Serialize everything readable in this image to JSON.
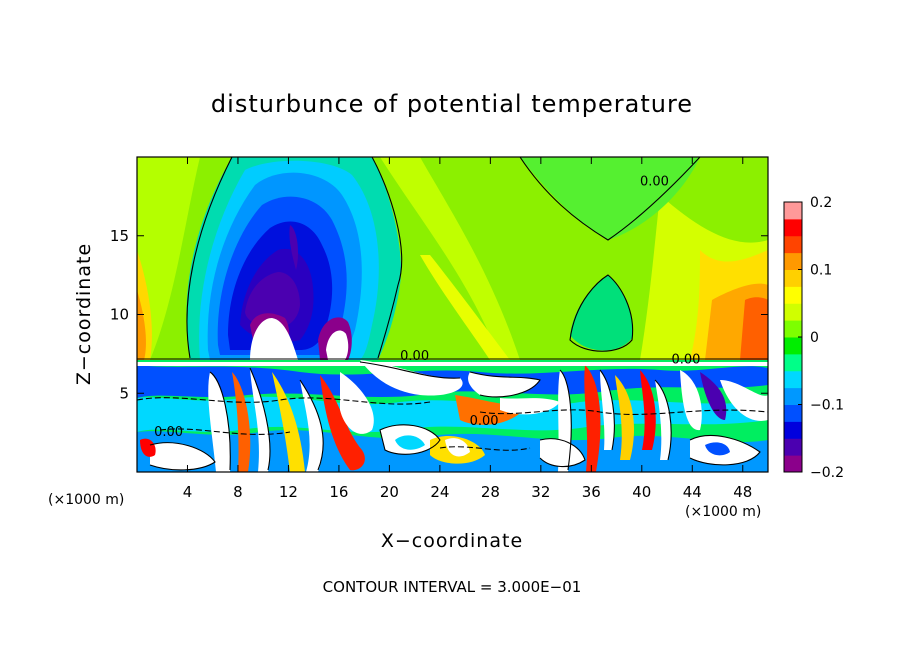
{
  "chart_data": {
    "type": "heatmap",
    "title": "disturbunce of potential temperature",
    "xlabel": "X−coordinate",
    "ylabel": "Z−coordinate",
    "x_unit": "(×1000 m)",
    "y_unit": "(×1000 m)",
    "xlim": [
      0,
      50
    ],
    "ylim": [
      0,
      20
    ],
    "xticks": [
      4,
      8,
      12,
      16,
      20,
      24,
      28,
      32,
      36,
      40,
      44,
      48
    ],
    "yticks": [
      5,
      10,
      15
    ],
    "grid": false,
    "colorbar": {
      "min": -0.2,
      "max": 0.2,
      "ticks": [
        0.2,
        0.1,
        0,
        -0.1,
        -0.2
      ],
      "tick_labels": [
        "0.2",
        "0.1",
        "0",
        "−0.1",
        "−0.2"
      ],
      "colors": [
        "#8b008b",
        "#4b00b0",
        "#0000dd",
        "#0050ff",
        "#0098ff",
        "#00d8ff",
        "#00ff88",
        "#00ee00",
        "#7dff00",
        "#d0ff00",
        "#ffff00",
        "#ffd000",
        "#ff9900",
        "#ff4400",
        "#ff0000",
        "#ff9999"
      ]
    },
    "contour_labels": [
      {
        "text": "0.00",
        "x": 41,
        "y": 18.2
      },
      {
        "text": "0.00",
        "x": 2.5,
        "y": 2.3
      },
      {
        "text": "0.00",
        "x": 22,
        "y": 7.1
      },
      {
        "text": "0.00",
        "x": 43.5,
        "y": 6.9
      },
      {
        "text": "0.00",
        "x": 27.5,
        "y": 3.0
      }
    ],
    "footnote": "CONTOUR INTERVAL = 3.000E−01"
  }
}
